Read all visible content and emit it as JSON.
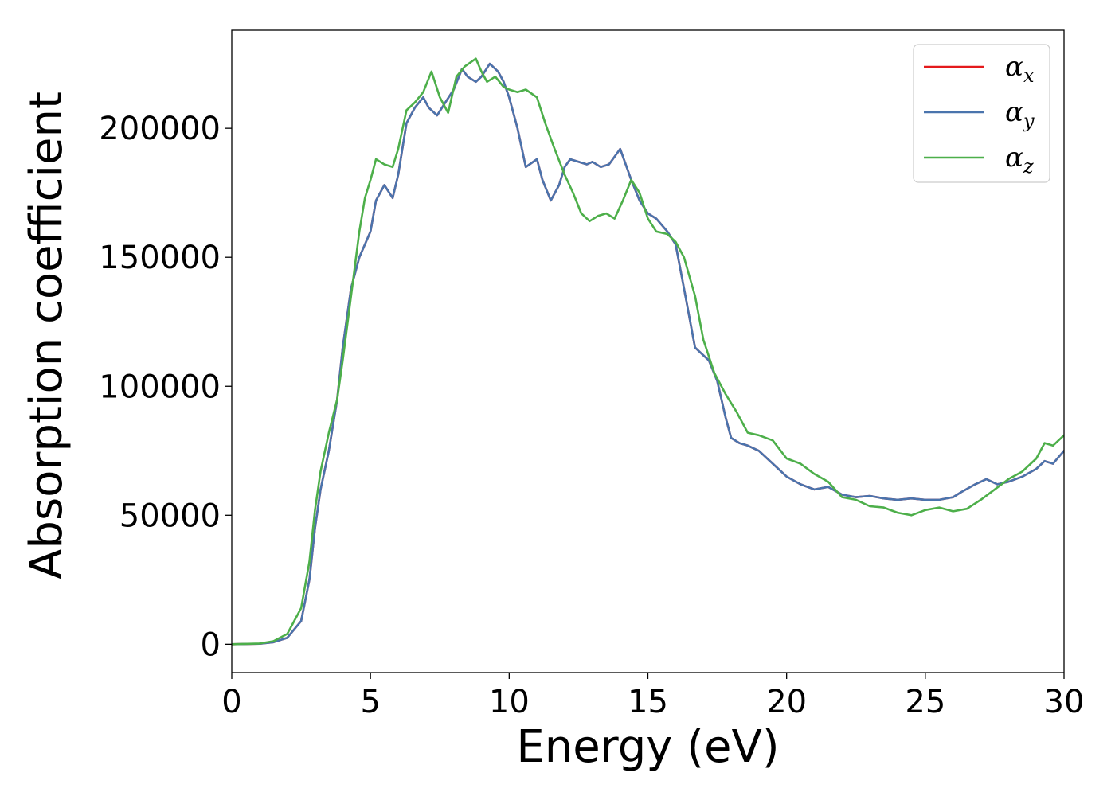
{
  "chart_data": {
    "type": "line",
    "title": "",
    "xlabel": "Energy (eV)",
    "ylabel": "Absorption coefficient",
    "xlim": [
      0,
      30
    ],
    "ylim": [
      -11000,
      238000
    ],
    "xticks": [
      0,
      5,
      10,
      15,
      20,
      25,
      30
    ],
    "yticks": [
      0,
      50000,
      100000,
      150000,
      200000
    ],
    "grid": false,
    "legend_position": "top-right",
    "series": [
      {
        "name": "α",
        "sub": "x",
        "color": "#e41a1c",
        "x": [
          0,
          1,
          1.5,
          2,
          2.5,
          2.8,
          3,
          3.2,
          3.5,
          3.8,
          4,
          4.3,
          4.6,
          4.8,
          5,
          5.2,
          5.5,
          5.8,
          6,
          6.3,
          6.6,
          6.9,
          7.1,
          7.4,
          7.7,
          8,
          8.3,
          8.5,
          8.8,
          9,
          9.3,
          9.6,
          9.8,
          10,
          10.3,
          10.6,
          11,
          11.2,
          11.5,
          11.8,
          12,
          12.2,
          12.5,
          12.8,
          13,
          13.3,
          13.6,
          14,
          14.4,
          14.7,
          15,
          15.3,
          15.7,
          16,
          16.3,
          16.7,
          17,
          17.2,
          17.5,
          17.8,
          18,
          18.3,
          18.6,
          19,
          19.5,
          20,
          20.5,
          21,
          21.5,
          22,
          22.5,
          23,
          23.5,
          24,
          24.5,
          25,
          25.5,
          26,
          26.3,
          26.8,
          27.2,
          27.6,
          28,
          28.5,
          29,
          29.3,
          29.6,
          30
        ],
        "y": [
          0,
          200,
          800,
          2500,
          9000,
          25000,
          45000,
          60000,
          75000,
          95000,
          115000,
          138000,
          150000,
          155000,
          160000,
          172000,
          178000,
          173000,
          182000,
          202000,
          208000,
          212000,
          208000,
          205000,
          210000,
          215000,
          223000,
          220000,
          218000,
          220000,
          225000,
          222000,
          218000,
          212000,
          200000,
          185000,
          188000,
          180000,
          172000,
          178000,
          185000,
          188000,
          187000,
          186000,
          187000,
          185000,
          186000,
          192000,
          180000,
          172000,
          167000,
          165000,
          160000,
          155000,
          138000,
          115000,
          112000,
          110000,
          102000,
          88000,
          80000,
          78000,
          77000,
          75000,
          70000,
          65000,
          62000,
          60000,
          61000,
          58000,
          57000,
          57500,
          56500,
          56000,
          56500,
          56000,
          56000,
          57000,
          59000,
          62000,
          64000,
          62000,
          63000,
          65000,
          68000,
          71000,
          70000,
          75000
        ]
      },
      {
        "name": "α",
        "sub": "y",
        "color": "#4a74ad",
        "x": [
          0,
          1,
          1.5,
          2,
          2.5,
          2.8,
          3,
          3.2,
          3.5,
          3.8,
          4,
          4.3,
          4.6,
          4.8,
          5,
          5.2,
          5.5,
          5.8,
          6,
          6.3,
          6.6,
          6.9,
          7.1,
          7.4,
          7.7,
          8,
          8.3,
          8.5,
          8.8,
          9,
          9.3,
          9.6,
          9.8,
          10,
          10.3,
          10.6,
          11,
          11.2,
          11.5,
          11.8,
          12,
          12.2,
          12.5,
          12.8,
          13,
          13.3,
          13.6,
          14,
          14.4,
          14.7,
          15,
          15.3,
          15.7,
          16,
          16.3,
          16.7,
          17,
          17.2,
          17.5,
          17.8,
          18,
          18.3,
          18.6,
          19,
          19.5,
          20,
          20.5,
          21,
          21.5,
          22,
          22.5,
          23,
          23.5,
          24,
          24.5,
          25,
          25.5,
          26,
          26.3,
          26.8,
          27.2,
          27.6,
          28,
          28.5,
          29,
          29.3,
          29.6,
          30
        ],
        "y": [
          0,
          200,
          800,
          2500,
          9000,
          25000,
          45000,
          60000,
          75000,
          95000,
          115000,
          138000,
          150000,
          155000,
          160000,
          172000,
          178000,
          173000,
          182000,
          202000,
          208000,
          212000,
          208000,
          205000,
          210000,
          215000,
          223000,
          220000,
          218000,
          220000,
          225000,
          222000,
          218000,
          212000,
          200000,
          185000,
          188000,
          180000,
          172000,
          178000,
          185000,
          188000,
          187000,
          186000,
          187000,
          185000,
          186000,
          192000,
          180000,
          172000,
          167000,
          165000,
          160000,
          155000,
          138000,
          115000,
          112000,
          110000,
          102000,
          88000,
          80000,
          78000,
          77000,
          75000,
          70000,
          65000,
          62000,
          60000,
          61000,
          58000,
          57000,
          57500,
          56500,
          56000,
          56500,
          56000,
          56000,
          57000,
          59000,
          62000,
          64000,
          62000,
          63000,
          65000,
          68000,
          71000,
          70000,
          75000
        ]
      },
      {
        "name": "α",
        "sub": "z",
        "color": "#4daf4a",
        "x": [
          0,
          1,
          1.5,
          2,
          2.5,
          2.8,
          3,
          3.2,
          3.5,
          3.8,
          4,
          4.3,
          4.6,
          4.8,
          5,
          5.2,
          5.5,
          5.8,
          6,
          6.3,
          6.6,
          6.9,
          7.2,
          7.5,
          7.8,
          8.1,
          8.4,
          8.8,
          9,
          9.2,
          9.5,
          9.8,
          10,
          10.3,
          10.6,
          11,
          11.3,
          11.6,
          12,
          12.3,
          12.6,
          12.9,
          13.2,
          13.5,
          13.8,
          14.1,
          14.4,
          14.7,
          15,
          15.3,
          15.7,
          16,
          16.3,
          16.7,
          17,
          17.4,
          17.8,
          18.2,
          18.6,
          19,
          19.5,
          20,
          20.5,
          21,
          21.5,
          22,
          22.5,
          23,
          23.5,
          24,
          24.5,
          25,
          25.5,
          26,
          26.5,
          27,
          27.5,
          28,
          28.5,
          29,
          29.3,
          29.6,
          30
        ],
        "y": [
          0,
          300,
          1200,
          4000,
          14000,
          32000,
          52000,
          67000,
          82000,
          95000,
          110000,
          135000,
          160000,
          173000,
          180000,
          188000,
          186000,
          185000,
          192000,
          207000,
          210000,
          214000,
          222000,
          212000,
          206000,
          220000,
          224000,
          227000,
          222000,
          218000,
          220000,
          216000,
          215000,
          214000,
          215000,
          212000,
          202000,
          193000,
          182000,
          175000,
          167000,
          164000,
          166000,
          167000,
          165000,
          172000,
          180000,
          175000,
          165000,
          160000,
          159000,
          156000,
          150000,
          135000,
          118000,
          105000,
          97000,
          90000,
          82000,
          81000,
          79000,
          72000,
          70000,
          66000,
          63000,
          57000,
          56000,
          53500,
          53000,
          51000,
          50000,
          52000,
          53000,
          51500,
          52500,
          56000,
          60000,
          64000,
          67000,
          72000,
          78000,
          77000,
          81000
        ]
      }
    ]
  }
}
